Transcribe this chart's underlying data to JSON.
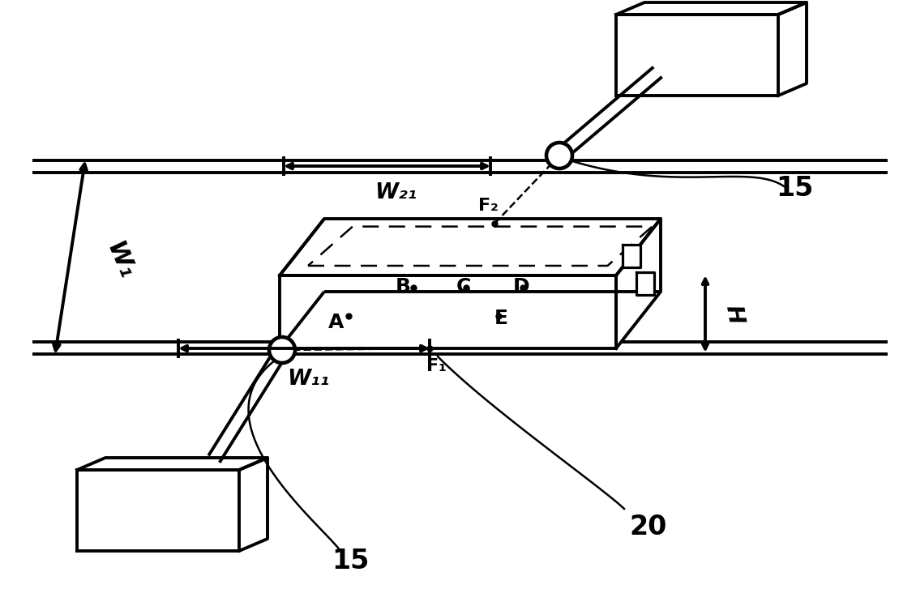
{
  "bg_color": "#ffffff",
  "line_color": "#000000",
  "fig_width": 11.3,
  "fig_height": 7.27,
  "dpi": 100,
  "labels": {
    "15_upper": "15",
    "15_lower": "15",
    "20": "20",
    "H": "H",
    "W1": "W₁",
    "W21": "W₂₁",
    "W11": "W₁₁",
    "A": "A",
    "B": "B",
    "C": "C",
    "D": "D",
    "E": "E",
    "F1": "F₁",
    "F2": "F₂"
  }
}
